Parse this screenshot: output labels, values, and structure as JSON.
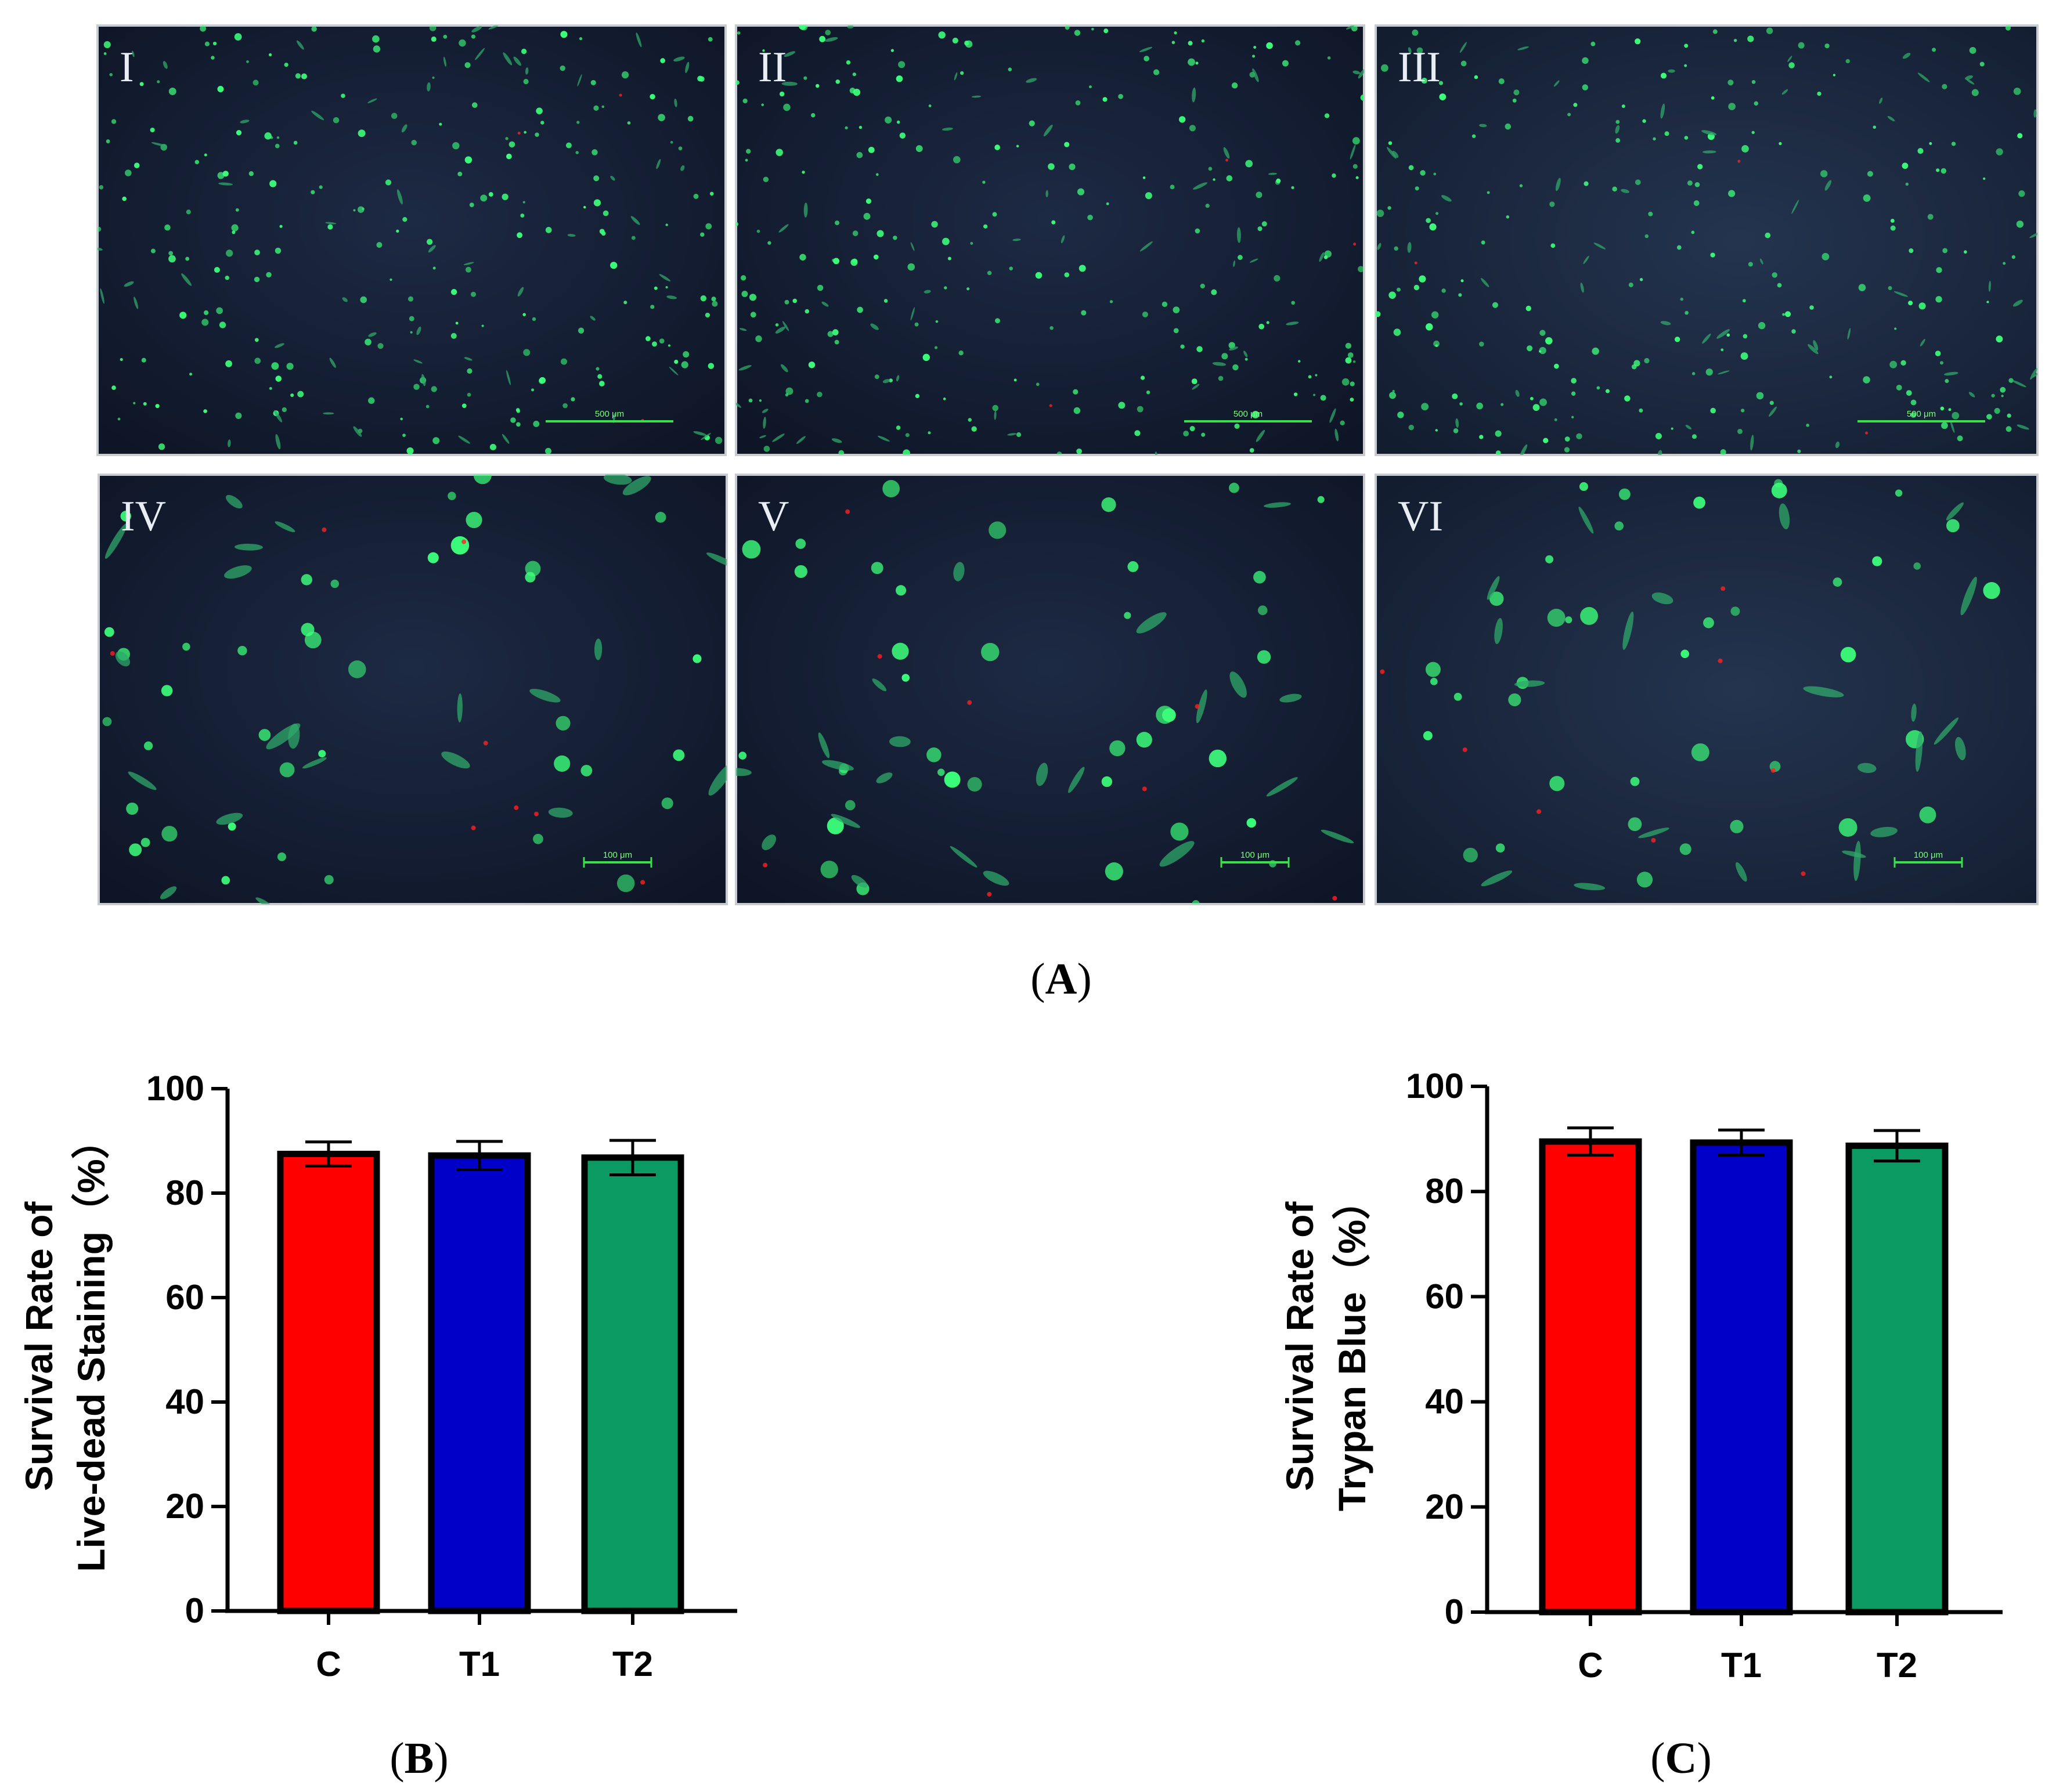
{
  "colors": {
    "C": "#ff0000",
    "T1": "#0000c8",
    "T2": "#0a9a62",
    "micro_bg": "#121a30",
    "live_cell": "#3cff7a",
    "dead_cell": "#ff2020"
  },
  "figure_a": {
    "label_prefix": "(",
    "label_letter": "A",
    "label_suffix": ")",
    "panels": [
      {
        "roman": "I",
        "scale_bar": "500 μm"
      },
      {
        "roman": "II",
        "scale_bar": "500 μm"
      },
      {
        "roman": "III",
        "scale_bar": "500 μm"
      },
      {
        "roman": "IV",
        "scale_bar": "100 μm"
      },
      {
        "roman": "V",
        "scale_bar": "100 μm"
      },
      {
        "roman": "VI",
        "scale_bar": "100 μm"
      }
    ]
  },
  "chart_data": [
    {
      "type": "bar",
      "panel": "B",
      "label_prefix": "(",
      "label_letter": "B",
      "label_suffix": ")",
      "categories": [
        "C",
        "T1",
        "T2"
      ],
      "values": [
        87.5,
        87.2,
        86.8
      ],
      "errors": [
        2.3,
        2.7,
        3.3
      ],
      "ylabel_line1": "Survival Rate of",
      "ylabel_line2": "Live-dead Staining（%）",
      "ylim": [
        0,
        100
      ],
      "yticks": [
        "0",
        "20",
        "40",
        "60",
        "80",
        "100"
      ]
    },
    {
      "type": "bar",
      "panel": "C",
      "label_prefix": "(",
      "label_letter": "C",
      "label_suffix": ")",
      "categories": [
        "C",
        "T1",
        "T2"
      ],
      "values": [
        89.5,
        89.3,
        88.7
      ],
      "errors": [
        2.6,
        2.4,
        2.9
      ],
      "ylabel_line1": "Survival Rate of",
      "ylabel_line2": "Trypan Blue（%）",
      "ylim": [
        0,
        100
      ],
      "yticks": [
        "0",
        "20",
        "40",
        "60",
        "80",
        "100"
      ]
    }
  ]
}
